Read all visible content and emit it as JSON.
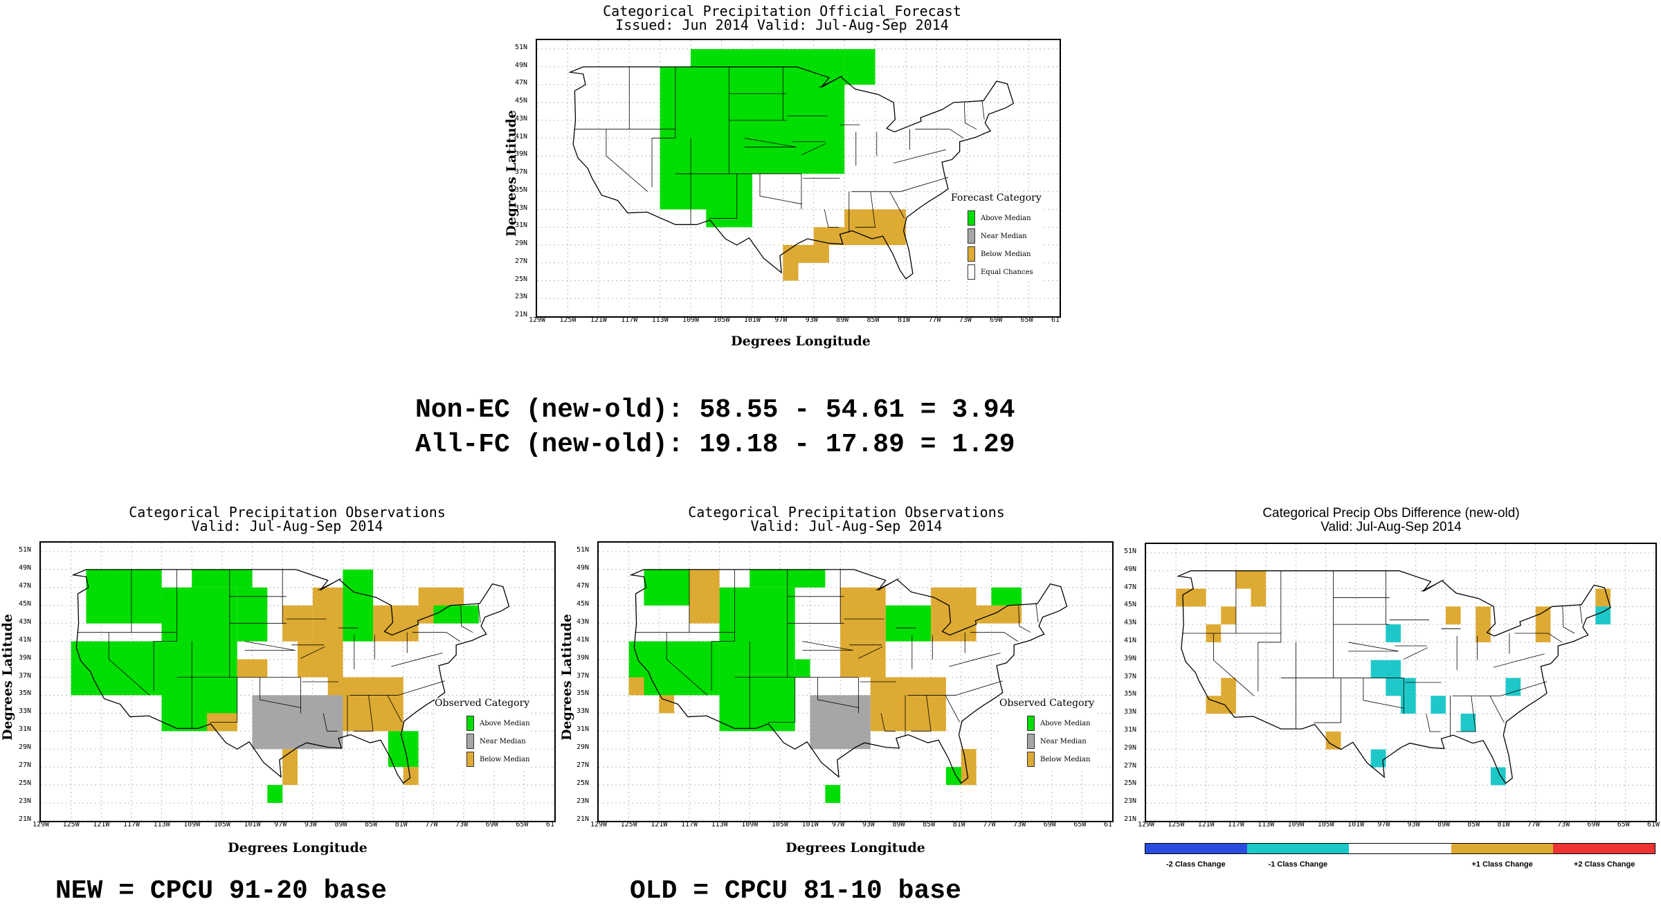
{
  "colors": {
    "above": "#00dd00",
    "near": "#a6a6a6",
    "below": "#ddaa33",
    "equal": "#ffffff",
    "minus2": "#2a4de0",
    "minus1": "#1ec8c8",
    "plus1": "#ddaa33",
    "plus2": "#ee3333"
  },
  "stats": {
    "line1": "Non-EC (new-old): 58.55 - 54.61 = 3.94",
    "line2": "All-FC (new-old): 19.18 - 17.89 = 1.29"
  },
  "captions": {
    "new": "NEW = CPCU 91-20 base",
    "old": "OLD = CPCU 81-10 base"
  },
  "chart_data": [
    {
      "type": "heatmap",
      "title": "Categorical Precipitation Official_Forecast",
      "subtitle": "Issued: Jun 2014 Valid: Jul-Aug-Sep 2014",
      "xlabel": "Degrees Longitude",
      "ylabel": "Degrees Latitude",
      "xlim": [
        -129,
        -61
      ],
      "ylim": [
        21,
        52
      ],
      "x_ticks": [
        "129W",
        "125W",
        "121W",
        "117W",
        "113W",
        "109W",
        "105W",
        "101W",
        "97W",
        "93W",
        "89W",
        "85W",
        "81W",
        "77W",
        "73W",
        "69W",
        "65W",
        "61"
      ],
      "y_ticks": [
        "21N",
        "23N",
        "25N",
        "27N",
        "29N",
        "31N",
        "33N",
        "35N",
        "37N",
        "39N",
        "41N",
        "43N",
        "45N",
        "47N",
        "49N",
        "51N"
      ],
      "legend": {
        "title": "Forecast Category",
        "placement": "right",
        "items": [
          {
            "label": "Above Median",
            "color": "#00dd00"
          },
          {
            "label": "Near Median",
            "color": "#a6a6a6"
          },
          {
            "label": "Below Median",
            "color": "#ddaa33"
          },
          {
            "label": "Equal Chances",
            "color": "#ffffff"
          }
        ]
      },
      "cell_size_deg": 2,
      "cells": [
        {
          "lon": -113,
          "lat": 33,
          "lon2": -101,
          "lat2": 49,
          "cat": "above"
        },
        {
          "lon": -109,
          "lat": 49,
          "lon2": -97,
          "lat2": 51,
          "cat": "above"
        },
        {
          "lon": -101,
          "lat": 37,
          "lon2": -89,
          "lat2": 51,
          "cat": "above"
        },
        {
          "lon": -89,
          "lat": 47,
          "lon2": -85,
          "lat2": 51,
          "cat": "above"
        },
        {
          "lon": -107,
          "lat": 31,
          "lon2": -101,
          "lat2": 33,
          "cat": "above"
        },
        {
          "lon": -89,
          "lat": 29,
          "lon2": -81,
          "lat2": 33,
          "cat": "below"
        },
        {
          "lon": -93,
          "lat": 29,
          "lon2": -89,
          "lat2": 31,
          "cat": "below"
        },
        {
          "lon": -95,
          "lat": 27,
          "lon2": -91,
          "lat2": 29,
          "cat": "below"
        },
        {
          "lon": -97,
          "lat": 25,
          "lon2": -95,
          "lat2": 29,
          "cat": "below"
        }
      ]
    },
    {
      "type": "heatmap",
      "title": "Categorical Precipitation Observations",
      "subtitle": "Valid: Jul-Aug-Sep 2014",
      "xlabel": "Degrees Longitude",
      "ylabel": "Degrees Latitude",
      "xlim": [
        -129,
        -61
      ],
      "ylim": [
        21,
        52
      ],
      "x_ticks": [
        "129W",
        "125W",
        "121W",
        "117W",
        "113W",
        "109W",
        "105W",
        "101W",
        "97W",
        "93W",
        "89W",
        "85W",
        "81W",
        "77W",
        "73W",
        "69W",
        "65W",
        "61"
      ],
      "y_ticks": [
        "21N",
        "23N",
        "25N",
        "27N",
        "29N",
        "31N",
        "33N",
        "35N",
        "37N",
        "39N",
        "41N",
        "43N",
        "45N",
        "47N",
        "49N",
        "51N"
      ],
      "legend": {
        "title": "Observed Category",
        "placement": "right",
        "items": [
          {
            "label": "Above Median",
            "color": "#00dd00"
          },
          {
            "label": "Near Median",
            "color": "#a6a6a6"
          },
          {
            "label": "Below Median",
            "color": "#ddaa33"
          }
        ]
      },
      "cell_size_deg": 2,
      "cells": [
        {
          "lon": -125,
          "lat": 35,
          "lon2": -111,
          "lat2": 41,
          "cat": "above"
        },
        {
          "lon": -123,
          "lat": 43,
          "lon2": -113,
          "lat2": 49,
          "cat": "above"
        },
        {
          "lon": -113,
          "lat": 31,
          "lon2": -103,
          "lat2": 47,
          "cat": "above"
        },
        {
          "lon": -109,
          "lat": 47,
          "lon2": -101,
          "lat2": 49,
          "cat": "above"
        },
        {
          "lon": -103,
          "lat": 41,
          "lon2": -99,
          "lat2": 47,
          "cat": "above"
        },
        {
          "lon": -97,
          "lat": 41,
          "lon2": -93,
          "lat2": 45,
          "cat": "below"
        },
        {
          "lon": -93,
          "lat": 39,
          "lon2": -89,
          "lat2": 47,
          "cat": "below"
        },
        {
          "lon": -89,
          "lat": 41,
          "lon2": -85,
          "lat2": 49,
          "cat": "above"
        },
        {
          "lon": -91,
          "lat": 31,
          "lon2": -81,
          "lat2": 37,
          "cat": "below"
        },
        {
          "lon": -95,
          "lat": 37,
          "lon2": -89,
          "lat2": 41,
          "cat": "below"
        },
        {
          "lon": -101,
          "lat": 29,
          "lon2": -89,
          "lat2": 35,
          "cat": "near"
        },
        {
          "lon": -85,
          "lat": 41,
          "lon2": -79,
          "lat2": 45,
          "cat": "below"
        },
        {
          "lon": -79,
          "lat": 43,
          "lon2": -73,
          "lat2": 47,
          "cat": "below"
        },
        {
          "lon": -77,
          "lat": 43,
          "lon2": -71,
          "lat2": 45,
          "cat": "above"
        },
        {
          "lon": -103,
          "lat": 37,
          "lon2": -99,
          "lat2": 39,
          "cat": "below"
        },
        {
          "lon": -107,
          "lat": 31,
          "lon2": -103,
          "lat2": 33,
          "cat": "below"
        },
        {
          "lon": -97,
          "lat": 25,
          "lon2": -95,
          "lat2": 29,
          "cat": "below"
        },
        {
          "lon": -99,
          "lat": 23,
          "lon2": -97,
          "lat2": 25,
          "cat": "above"
        },
        {
          "lon": -83,
          "lat": 27,
          "lon2": -79,
          "lat2": 31,
          "cat": "above"
        },
        {
          "lon": -81,
          "lat": 25,
          "lon2": -79,
          "lat2": 27,
          "cat": "below"
        }
      ]
    },
    {
      "type": "heatmap",
      "title": "Categorical Precipitation Observations",
      "subtitle": "Valid: Jul-Aug-Sep 2014",
      "xlabel": "Degrees Longitude",
      "ylabel": "Degrees Latitude",
      "xlim": [
        -129,
        -61
      ],
      "ylim": [
        21,
        52
      ],
      "x_ticks": [
        "129W",
        "125W",
        "121W",
        "117W",
        "113W",
        "109W",
        "105W",
        "101W",
        "97W",
        "93W",
        "89W",
        "85W",
        "81W",
        "77W",
        "73W",
        "69W",
        "65W",
        "61"
      ],
      "y_ticks": [
        "21N",
        "23N",
        "25N",
        "27N",
        "29N",
        "31N",
        "33N",
        "35N",
        "37N",
        "39N",
        "41N",
        "43N",
        "45N",
        "47N",
        "49N",
        "51N"
      ],
      "legend": {
        "title": "Observed Category",
        "placement": "right",
        "items": [
          {
            "label": "Above Median",
            "color": "#00dd00"
          },
          {
            "label": "Near Median",
            "color": "#a6a6a6"
          },
          {
            "label": "Below Median",
            "color": "#ddaa33"
          }
        ]
      },
      "cell_size_deg": 2,
      "cells": [
        {
          "lon": -125,
          "lat": 35,
          "lon2": -113,
          "lat2": 41,
          "cat": "above"
        },
        {
          "lon": -123,
          "lat": 45,
          "lon2": -115,
          "lat2": 49,
          "cat": "above"
        },
        {
          "lon": -113,
          "lat": 31,
          "lon2": -103,
          "lat2": 47,
          "cat": "above"
        },
        {
          "lon": -109,
          "lat": 47,
          "lon2": -99,
          "lat2": 49,
          "cat": "above"
        },
        {
          "lon": -117,
          "lat": 43,
          "lon2": -113,
          "lat2": 49,
          "cat": "below"
        },
        {
          "lon": -97,
          "lat": 41,
          "lon2": -91,
          "lat2": 47,
          "cat": "below"
        },
        {
          "lon": -91,
          "lat": 41,
          "lon2": -85,
          "lat2": 45,
          "cat": "above"
        },
        {
          "lon": -93,
          "lat": 31,
          "lon2": -83,
          "lat2": 37,
          "cat": "below"
        },
        {
          "lon": -97,
          "lat": 37,
          "lon2": -91,
          "lat2": 41,
          "cat": "below"
        },
        {
          "lon": -101,
          "lat": 29,
          "lon2": -93,
          "lat2": 35,
          "cat": "near"
        },
        {
          "lon": -85,
          "lat": 41,
          "lon2": -79,
          "lat2": 47,
          "cat": "below"
        },
        {
          "lon": -79,
          "lat": 43,
          "lon2": -73,
          "lat2": 45,
          "cat": "below"
        },
        {
          "lon": -77,
          "lat": 45,
          "lon2": -73,
          "lat2": 47,
          "cat": "above"
        },
        {
          "lon": -103,
          "lat": 37,
          "lon2": -101,
          "lat2": 39,
          "cat": "above"
        },
        {
          "lon": -125,
          "lat": 35,
          "lon2": -123,
          "lat2": 37,
          "cat": "below"
        },
        {
          "lon": -121,
          "lat": 33,
          "lon2": -119,
          "lat2": 35,
          "cat": "below"
        },
        {
          "lon": -99,
          "lat": 23,
          "lon2": -97,
          "lat2": 25,
          "cat": "above"
        },
        {
          "lon": -83,
          "lat": 25,
          "lon2": -79,
          "lat2": 27,
          "cat": "above"
        },
        {
          "lon": -81,
          "lat": 25,
          "lon2": -79,
          "lat2": 29,
          "cat": "below"
        }
      ]
    },
    {
      "type": "heatmap",
      "title": "Categorical Precip Obs Difference (new-old)",
      "subtitle": "Valid: Jul-Aug-Sep 2014",
      "xlim": [
        -129,
        -61
      ],
      "ylim": [
        21,
        52
      ],
      "x_ticks": [
        "129W",
        "125W",
        "121W",
        "117W",
        "113W",
        "109W",
        "105W",
        "101W",
        "97W",
        "93W",
        "89W",
        "85W",
        "81W",
        "77W",
        "73W",
        "69W",
        "65W",
        "61W"
      ],
      "y_ticks": [
        "21N",
        "23N",
        "25N",
        "27N",
        "29N",
        "31N",
        "33N",
        "35N",
        "37N",
        "39N",
        "41N",
        "43N",
        "45N",
        "47N",
        "49N",
        "51N"
      ],
      "colorbar": {
        "placement": "bottom",
        "items": [
          {
            "label": "-2 Class Change",
            "color": "#2a4de0"
          },
          {
            "label": "-1 Class Change",
            "color": "#1ec8c8"
          },
          {
            "label": "",
            "color": "#ffffff"
          },
          {
            "label": "+1 Class Change",
            "color": "#ddaa33"
          },
          {
            "label": "+2 Class Change",
            "color": "#ee3333"
          }
        ]
      },
      "cell_size_deg": 2,
      "cells": [
        {
          "lon": -125,
          "lat": 45,
          "lon2": -121,
          "lat2": 47,
          "cat": "plus1"
        },
        {
          "lon": -119,
          "lat": 43,
          "lon2": -117,
          "lat2": 45,
          "cat": "plus1"
        },
        {
          "lon": -121,
          "lat": 41,
          "lon2": -119,
          "lat2": 43,
          "cat": "plus1"
        },
        {
          "lon": -117,
          "lat": 47,
          "lon2": -113,
          "lat2": 49,
          "cat": "plus1"
        },
        {
          "lon": -115,
          "lat": 45,
          "lon2": -113,
          "lat2": 47,
          "cat": "plus1"
        },
        {
          "lon": -121,
          "lat": 33,
          "lon2": -117,
          "lat2": 35,
          "cat": "plus1"
        },
        {
          "lon": -119,
          "lat": 35,
          "lon2": -117,
          "lat2": 37,
          "cat": "plus1"
        },
        {
          "lon": -105,
          "lat": 29,
          "lon2": -103,
          "lat2": 31,
          "cat": "plus1"
        },
        {
          "lon": -89,
          "lat": 43,
          "lon2": -87,
          "lat2": 45,
          "cat": "plus1"
        },
        {
          "lon": -85,
          "lat": 41,
          "lon2": -83,
          "lat2": 45,
          "cat": "plus1"
        },
        {
          "lon": -77,
          "lat": 41,
          "lon2": -75,
          "lat2": 45,
          "cat": "plus1"
        },
        {
          "lon": -69,
          "lat": 45,
          "lon2": -67,
          "lat2": 47,
          "cat": "plus1"
        },
        {
          "lon": -97,
          "lat": 41,
          "lon2": -95,
          "lat2": 43,
          "cat": "minus1"
        },
        {
          "lon": -99,
          "lat": 37,
          "lon2": -95,
          "lat2": 39,
          "cat": "minus1"
        },
        {
          "lon": -97,
          "lat": 35,
          "lon2": -93,
          "lat2": 37,
          "cat": "minus1"
        },
        {
          "lon": -95,
          "lat": 33,
          "lon2": -93,
          "lat2": 35,
          "cat": "minus1"
        },
        {
          "lon": -91,
          "lat": 33,
          "lon2": -89,
          "lat2": 35,
          "cat": "minus1"
        },
        {
          "lon": -87,
          "lat": 31,
          "lon2": -85,
          "lat2": 33,
          "cat": "minus1"
        },
        {
          "lon": -81,
          "lat": 35,
          "lon2": -79,
          "lat2": 37,
          "cat": "minus1"
        },
        {
          "lon": -99,
          "lat": 27,
          "lon2": -97,
          "lat2": 29,
          "cat": "minus1"
        },
        {
          "lon": -83,
          "lat": 25,
          "lon2": -81,
          "lat2": 27,
          "cat": "minus1"
        },
        {
          "lon": -69,
          "lat": 43,
          "lon2": -67,
          "lat2": 45,
          "cat": "minus1"
        }
      ]
    }
  ]
}
